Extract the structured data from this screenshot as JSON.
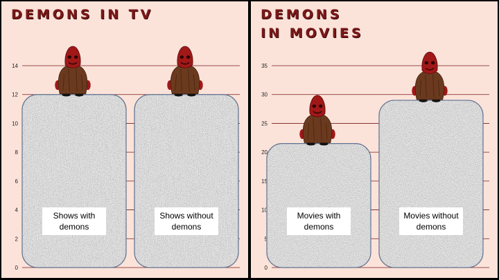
{
  "chart_data": [
    {
      "type": "bar",
      "title": "DEMONS IN TV",
      "categories": [
        "Shows with demons",
        "Shows without demons"
      ],
      "values": [
        12,
        12
      ],
      "yticks": [
        0,
        2,
        4,
        6,
        8,
        10,
        12,
        14
      ],
      "ylim": [
        0,
        14
      ],
      "xlabel": "",
      "ylabel": "",
      "grid": true,
      "bar_texture": "tv-static",
      "bar_topper": "demon-figure"
    },
    {
      "type": "bar",
      "title": "DEMONS IN MOVIES",
      "categories": [
        "Movies with demons",
        "Movies without demons"
      ],
      "values": [
        21.5,
        29
      ],
      "yticks": [
        0,
        5,
        10,
        15,
        20,
        25,
        30,
        35
      ],
      "ylim": [
        0,
        35
      ],
      "xlabel": "",
      "ylabel": "",
      "grid": true,
      "bar_texture": "tv-static",
      "bar_topper": "demon-figure"
    }
  ],
  "colors": {
    "panel_bg": "#fbe3da",
    "title": "#7a1818",
    "gridline": "#7a1818",
    "demon_body": "#6b3a1e",
    "demon_head": "#a01818"
  }
}
